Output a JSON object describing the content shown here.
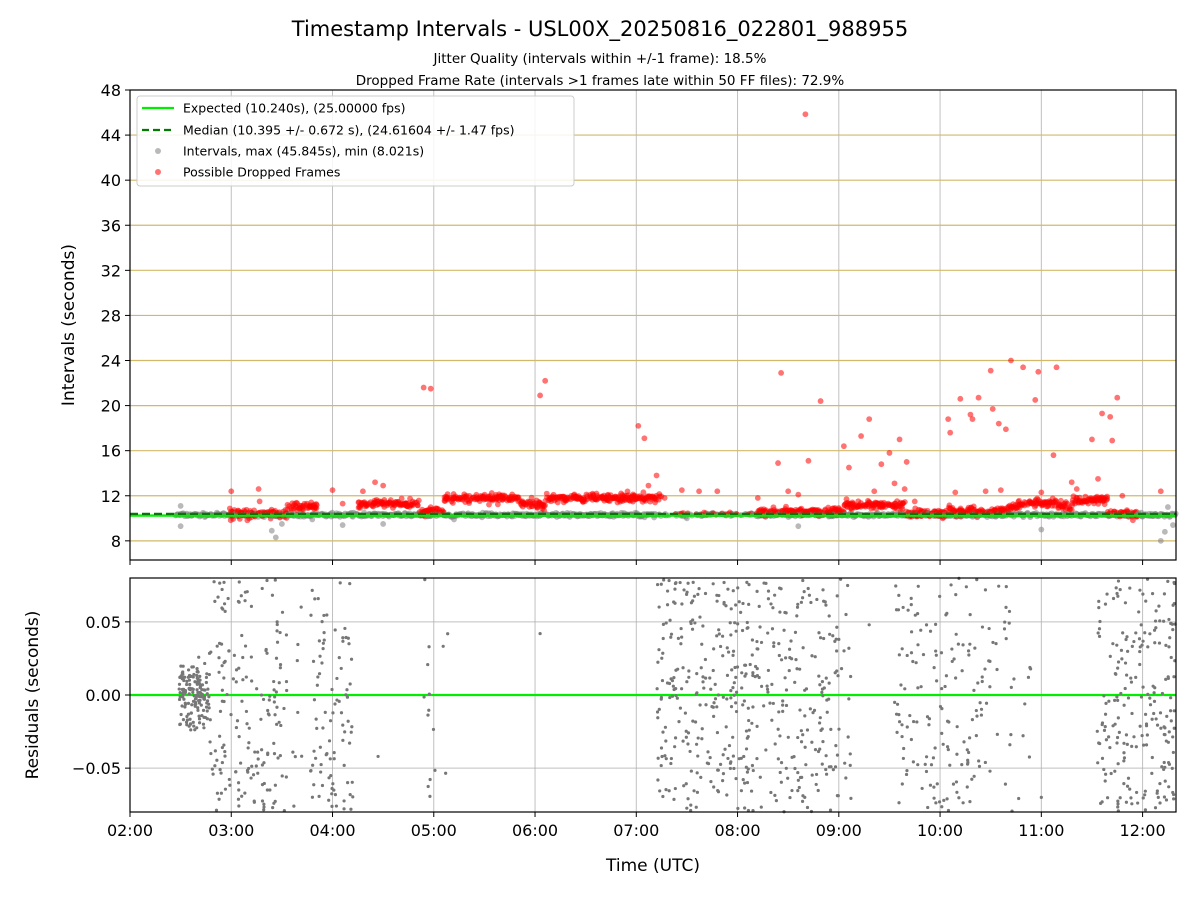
{
  "chart_data": [
    {
      "type": "scatter",
      "title": "Timestamp Intervals - USL00X_20250816_022801_988955",
      "subtitle_lines": [
        "Jitter Quality (intervals within +/-1 frame): 18.5%",
        "Dropped Frame Rate (intervals >1 frames late within 50 FF files): 72.9%"
      ],
      "ylabel": "Intervals (seconds)",
      "xlim_hours": [
        2.0,
        12.33
      ],
      "ylim": [
        6.3,
        48
      ],
      "y_ticks": [
        8,
        12,
        16,
        20,
        24,
        28,
        32,
        36,
        40,
        44,
        48
      ],
      "y_tick_labels": [
        "8",
        "12",
        "16",
        "20",
        "24",
        "28",
        "32",
        "36",
        "40",
        "44",
        "48"
      ],
      "horizontal_grid_color": "#d2b96a",
      "legend_position": "upper-left",
      "legend": [
        {
          "label": "Expected (10.240s), (25.00000 fps)",
          "style": "solid-line",
          "color": "#00ee00"
        },
        {
          "label": "Median (10.395 +/- 0.672 s), (24.61604 +/- 1.47 fps)",
          "style": "dashed-line",
          "color": "#007a00"
        },
        {
          "label": "Intervals, max (45.845s), min (8.021s)",
          "style": "dot",
          "color": "#808080"
        },
        {
          "label": "Possible Dropped Frames",
          "style": "dot",
          "color": "#ff0000"
        }
      ],
      "expected_interval": 10.24,
      "median_interval": 10.395,
      "intervals_max": 45.845,
      "intervals_min": 8.021,
      "dropped_outliers": [
        [
          3.0,
          12.4
        ],
        [
          3.27,
          12.6
        ],
        [
          3.28,
          11.5
        ],
        [
          4.0,
          12.5
        ],
        [
          4.1,
          11.3
        ],
        [
          4.3,
          12.4
        ],
        [
          4.42,
          13.2
        ],
        [
          4.5,
          12.9
        ],
        [
          4.9,
          21.6
        ],
        [
          4.97,
          21.5
        ],
        [
          6.05,
          20.9
        ],
        [
          6.1,
          22.2
        ],
        [
          7.02,
          18.2
        ],
        [
          7.08,
          17.1
        ],
        [
          7.12,
          12.9
        ],
        [
          7.2,
          13.8
        ],
        [
          7.28,
          11.8
        ],
        [
          7.45,
          12.5
        ],
        [
          7.62,
          12.4
        ],
        [
          7.8,
          12.4
        ],
        [
          8.2,
          11.8
        ],
        [
          8.4,
          14.9
        ],
        [
          8.43,
          22.9
        ],
        [
          8.5,
          12.4
        ],
        [
          8.6,
          12.1
        ],
        [
          8.67,
          45.85
        ],
        [
          8.7,
          15.1
        ],
        [
          8.82,
          20.4
        ],
        [
          9.05,
          16.4
        ],
        [
          9.1,
          14.5
        ],
        [
          9.22,
          17.3
        ],
        [
          9.3,
          18.8
        ],
        [
          9.35,
          12.4
        ],
        [
          9.42,
          14.8
        ],
        [
          9.5,
          15.8
        ],
        [
          9.55,
          13.1
        ],
        [
          9.6,
          17.0
        ],
        [
          9.65,
          12.6
        ],
        [
          9.67,
          15.0
        ],
        [
          9.75,
          11.5
        ],
        [
          10.08,
          18.8
        ],
        [
          10.1,
          17.6
        ],
        [
          10.15,
          12.3
        ],
        [
          10.2,
          20.6
        ],
        [
          10.3,
          19.2
        ],
        [
          10.32,
          18.8
        ],
        [
          10.38,
          20.7
        ],
        [
          10.45,
          12.4
        ],
        [
          10.5,
          23.1
        ],
        [
          10.52,
          19.7
        ],
        [
          10.58,
          18.4
        ],
        [
          10.6,
          12.5
        ],
        [
          10.65,
          17.9
        ],
        [
          10.7,
          24.0
        ],
        [
          10.82,
          23.4
        ],
        [
          10.94,
          20.5
        ],
        [
          10.97,
          23.0
        ],
        [
          11.0,
          12.3
        ],
        [
          11.12,
          15.6
        ],
        [
          11.15,
          23.4
        ],
        [
          11.3,
          13.2
        ],
        [
          11.35,
          12.6
        ],
        [
          11.5,
          17.0
        ],
        [
          11.56,
          13.5
        ],
        [
          11.6,
          19.3
        ],
        [
          11.68,
          19.0
        ],
        [
          11.7,
          16.9
        ],
        [
          11.75,
          20.7
        ],
        [
          11.8,
          12.0
        ],
        [
          12.18,
          12.4
        ]
      ],
      "gray_outliers": [
        [
          2.5,
          11.1
        ],
        [
          2.5,
          9.3
        ],
        [
          3.4,
          8.9
        ],
        [
          3.44,
          8.3
        ],
        [
          3.5,
          9.5
        ],
        [
          3.8,
          9.9
        ],
        [
          4.1,
          9.4
        ],
        [
          4.5,
          9.5
        ],
        [
          5.2,
          9.9
        ],
        [
          6.05,
          10.4
        ],
        [
          7.5,
          10.0
        ],
        [
          8.6,
          9.3
        ],
        [
          11.0,
          9.0
        ],
        [
          12.18,
          8.0
        ],
        [
          12.22,
          8.8
        ],
        [
          12.25,
          11.0
        ],
        [
          12.3,
          9.4
        ]
      ]
    },
    {
      "type": "scatter",
      "xlabel": "Time (UTC)",
      "ylabel": "Residuals (seconds)",
      "ylim": [
        -0.08,
        0.08
      ],
      "y_ticks": [
        -0.05,
        0.0,
        0.05
      ],
      "y_tick_labels": [
        "−0.05",
        "0.00",
        "0.05"
      ],
      "x_ticks_hours": [
        2,
        3,
        4,
        5,
        6,
        7,
        8,
        9,
        10,
        11,
        12
      ],
      "x_tick_labels": [
        "02:00",
        "03:00",
        "04:00",
        "05:00",
        "06:00",
        "07:00",
        "08:00",
        "09:00",
        "10:00",
        "11:00",
        "12:00"
      ],
      "zero_line_color": "#00ee00",
      "point_color": "#777777",
      "clusters": [
        {
          "start": 2.48,
          "end": 2.78,
          "count": 150,
          "spread": 0.032
        },
        {
          "start": 2.78,
          "end": 3.05,
          "count": 60,
          "spread": 0.08
        },
        {
          "start": 3.05,
          "end": 3.55,
          "count": 110,
          "spread": 0.08
        },
        {
          "start": 3.6,
          "end": 3.7,
          "count": 8,
          "spread": 0.08
        },
        {
          "start": 3.78,
          "end": 4.2,
          "count": 90,
          "spread": 0.08
        },
        {
          "start": 4.9,
          "end": 5.15,
          "count": 15,
          "spread": 0.08
        },
        {
          "start": 7.2,
          "end": 8.15,
          "count": 260,
          "spread": 0.08
        },
        {
          "start": 8.15,
          "end": 9.12,
          "count": 200,
          "spread": 0.08
        },
        {
          "start": 9.55,
          "end": 10.5,
          "count": 150,
          "spread": 0.08
        },
        {
          "start": 10.5,
          "end": 10.9,
          "count": 25,
          "spread": 0.08
        },
        {
          "start": 11.55,
          "end": 12.33,
          "count": 210,
          "spread": 0.08
        }
      ],
      "extra_points": [
        [
          4.45,
          -0.042
        ],
        [
          6.05,
          0.042
        ],
        [
          8.3,
          0.002
        ],
        [
          9.3,
          0.048
        ],
        [
          11.0,
          -0.07
        ]
      ]
    }
  ]
}
